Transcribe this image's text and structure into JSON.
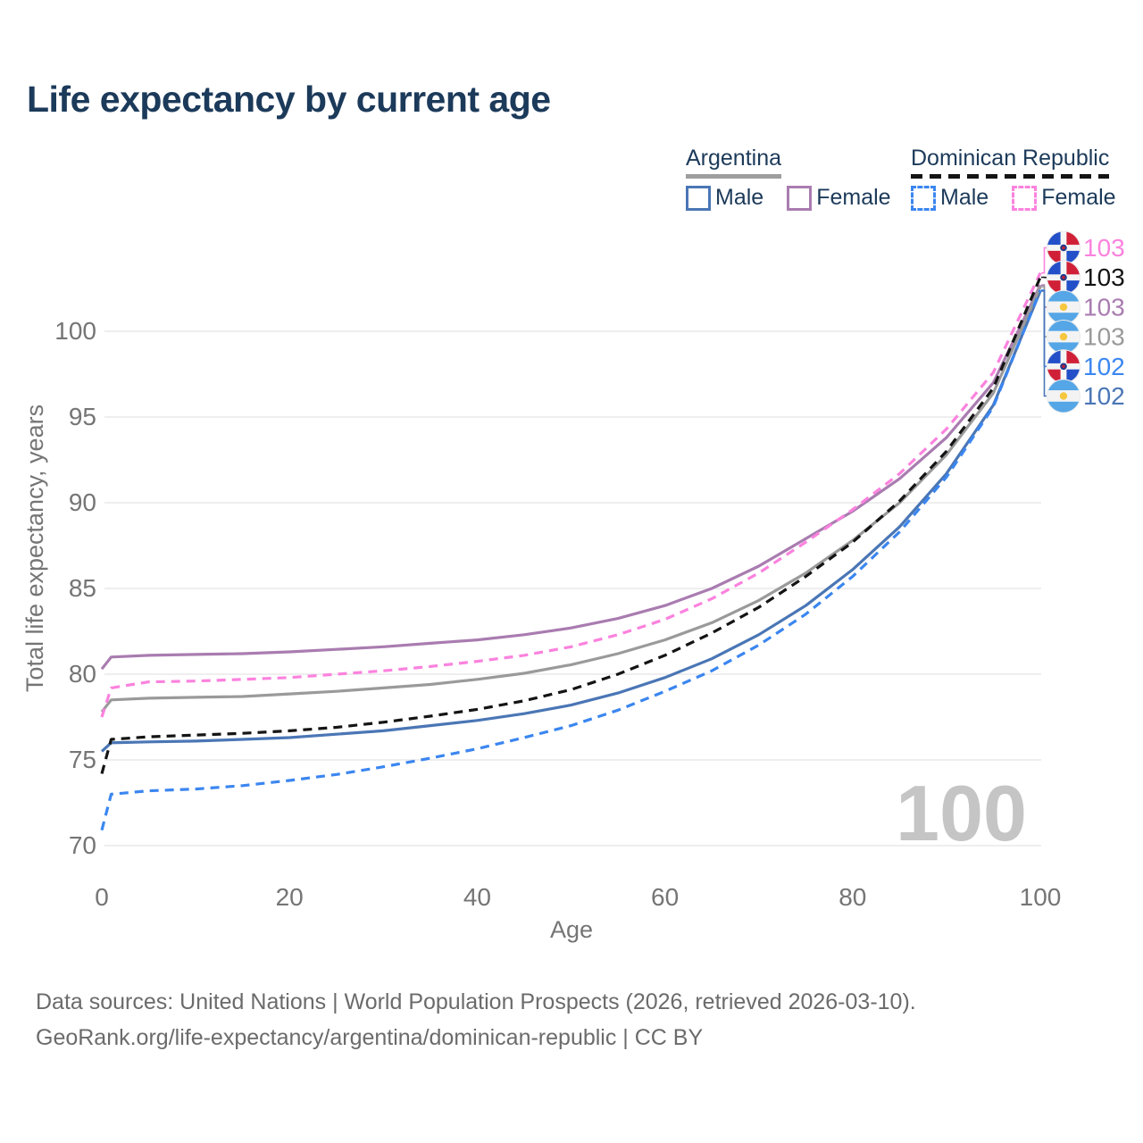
{
  "title": "Life expectancy by current age",
  "legend": {
    "groups": [
      {
        "name": "Argentina",
        "line_style": "solid",
        "underline_color": "#9e9e9e",
        "items": [
          {
            "label": "Male",
            "color": "#4a76b5"
          },
          {
            "label": "Female",
            "color": "#a97cb0"
          }
        ]
      },
      {
        "name": "Dominican Republic",
        "line_style": "dashed",
        "underline_color": "#141414",
        "items": [
          {
            "label": "Male",
            "color": "#3b86f0"
          },
          {
            "label": "Female",
            "color": "#fb82de"
          }
        ]
      }
    ]
  },
  "footer": {
    "line1": "Data sources: United Nations | World Population Prospects (2026, retrieved 2026-03-10).",
    "line2": "GeoRank.org/life-expectancy/argentina/dominican-republic | CC BY"
  },
  "chart_data": {
    "type": "line",
    "xlabel": "Age",
    "ylabel": "Total life expectancy, years",
    "x_ticks": [
      0,
      20,
      40,
      60,
      80,
      100
    ],
    "y_ticks": [
      70,
      75,
      80,
      85,
      90,
      95,
      100
    ],
    "xlim": [
      0,
      100
    ],
    "ylim": [
      69.5,
      103.6
    ],
    "grid": true,
    "watermark": "100",
    "ages": [
      0,
      1,
      5,
      10,
      15,
      20,
      25,
      30,
      35,
      40,
      45,
      50,
      55,
      60,
      65,
      70,
      75,
      80,
      85,
      90,
      95,
      100
    ],
    "series": [
      {
        "name": "Argentina Male",
        "country": "Argentina",
        "sex": "Male",
        "flag": "argentina",
        "color": "#4a76b5",
        "dash": false,
        "end_label": "102",
        "values": [
          75.5,
          76.0,
          76.05,
          76.1,
          76.2,
          76.3,
          76.5,
          76.7,
          77.0,
          77.3,
          77.7,
          78.2,
          78.9,
          79.8,
          80.9,
          82.3,
          84.0,
          86.1,
          88.6,
          91.7,
          95.7,
          102.35
        ]
      },
      {
        "name": "Argentina Female",
        "country": "Argentina",
        "sex": "Female",
        "flag": "argentina",
        "color": "#a97cb0",
        "dash": false,
        "end_label": "103",
        "values": [
          80.3,
          81.0,
          81.1,
          81.15,
          81.2,
          81.3,
          81.45,
          81.6,
          81.8,
          82.0,
          82.3,
          82.7,
          83.25,
          84.0,
          85.0,
          86.3,
          87.9,
          89.5,
          91.4,
          93.8,
          97.0,
          102.7
        ]
      },
      {
        "name": "Argentina",
        "country": "Argentina",
        "sex": "Both",
        "flag": "argentina",
        "color": "#9a9a9a",
        "dash": false,
        "end_label": "103",
        "values": [
          77.8,
          78.5,
          78.6,
          78.65,
          78.7,
          78.85,
          79.0,
          79.2,
          79.4,
          79.7,
          80.05,
          80.55,
          81.2,
          82.0,
          83.0,
          84.3,
          85.9,
          87.8,
          90.0,
          92.8,
          96.4,
          102.6
        ]
      },
      {
        "name": "Dominican Republic Male",
        "country": "Dominican Republic",
        "sex": "Male",
        "flag": "dominican-republic",
        "color": "#3b86f0",
        "dash": true,
        "end_label": "102",
        "values": [
          70.9,
          73.0,
          73.2,
          73.3,
          73.5,
          73.8,
          74.15,
          74.6,
          75.1,
          75.65,
          76.3,
          77.0,
          77.9,
          79.0,
          80.2,
          81.7,
          83.5,
          85.7,
          88.3,
          91.5,
          95.6,
          102.4
        ]
      },
      {
        "name": "Dominican Republic Female",
        "country": "Dominican Republic",
        "sex": "Female",
        "flag": "dominican-republic",
        "color": "#fb82de",
        "dash": true,
        "end_label": "103",
        "values": [
          77.5,
          79.2,
          79.55,
          79.6,
          79.7,
          79.8,
          80.0,
          80.2,
          80.45,
          80.75,
          81.1,
          81.6,
          82.3,
          83.2,
          84.4,
          85.9,
          87.7,
          89.6,
          91.7,
          94.3,
          97.6,
          103.4
        ]
      },
      {
        "name": "Dominican Republic",
        "country": "Dominican Republic",
        "sex": "Both",
        "flag": "dominican-republic",
        "color": "#141414",
        "dash": true,
        "end_label": "103",
        "values": [
          74.2,
          76.2,
          76.35,
          76.45,
          76.55,
          76.7,
          76.9,
          77.2,
          77.55,
          77.95,
          78.45,
          79.1,
          80.0,
          81.1,
          82.4,
          83.9,
          85.7,
          87.7,
          90.1,
          93.0,
          96.7,
          103.15
        ]
      }
    ],
    "flag_colors": {
      "argentina": {
        "band": "#55a6e6",
        "middle": "#f3f3f3",
        "sun": "#f6c73f"
      },
      "dominican-republic": {
        "blue": "#2350c8",
        "red": "#d02038",
        "cross": "#f5f5f5",
        "emblem_outer": "#1e3a8a",
        "emblem_inner": "#c01f3a"
      }
    },
    "style": {
      "axis_text_color": "#757575",
      "grid_color": "#e9e9e9",
      "watermark_color": "#c5c5c5",
      "title_color": "#1c3a5a"
    }
  }
}
